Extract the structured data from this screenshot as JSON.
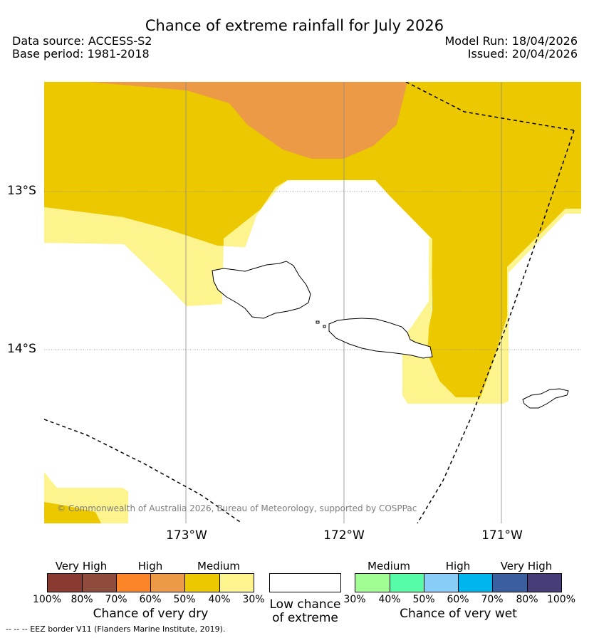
{
  "title": "Chance of extreme rainfall for July 2026",
  "data_source": "Data source: ACCESS-S2",
  "base_period": "Base period: 1981-2018",
  "model_run": "Model Run: 18/04/2026",
  "issued": "Issued: 20/04/2026",
  "map": {
    "lat_labels": [
      "13°S",
      "14°S"
    ],
    "lon_labels": [
      "173°W",
      "172°W",
      "171°W"
    ],
    "attribution": "© Commonwealth of Australia 2026, Bureau of Meteorology, supported by COSPPac",
    "colors": {
      "medium_dry": "#ecc800",
      "light_dry": "#fdf48e",
      "high_dry": "#ec9a46"
    }
  },
  "legend": {
    "dry": {
      "categories": [
        "Very High",
        "High",
        "Medium"
      ],
      "percent_ticks": [
        "100%",
        "80%",
        "70%",
        "60%",
        "50%",
        "40%",
        "30%"
      ],
      "caption": "Chance of very dry",
      "colors": [
        "#8b3a32",
        "#8f4b3c",
        "#fc8528",
        "#ec9a46",
        "#ecc800",
        "#fdf48e"
      ]
    },
    "low": {
      "line1": "Low chance",
      "line2": "of extreme",
      "color": "#ffffff"
    },
    "wet": {
      "categories": [
        "Medium",
        "High",
        "Very High"
      ],
      "percent_ticks": [
        "30%",
        "40%",
        "50%",
        "60%",
        "70%",
        "80%",
        "100%"
      ],
      "caption": "Chance of very wet",
      "colors": [
        "#a0fe92",
        "#57fca8",
        "#88ccf8",
        "#00b4ee",
        "#3a5f9e",
        "#463d79"
      ]
    }
  },
  "footer": "--  --  -- EEZ border V11 (Flanders Marine Institute, 2019)."
}
